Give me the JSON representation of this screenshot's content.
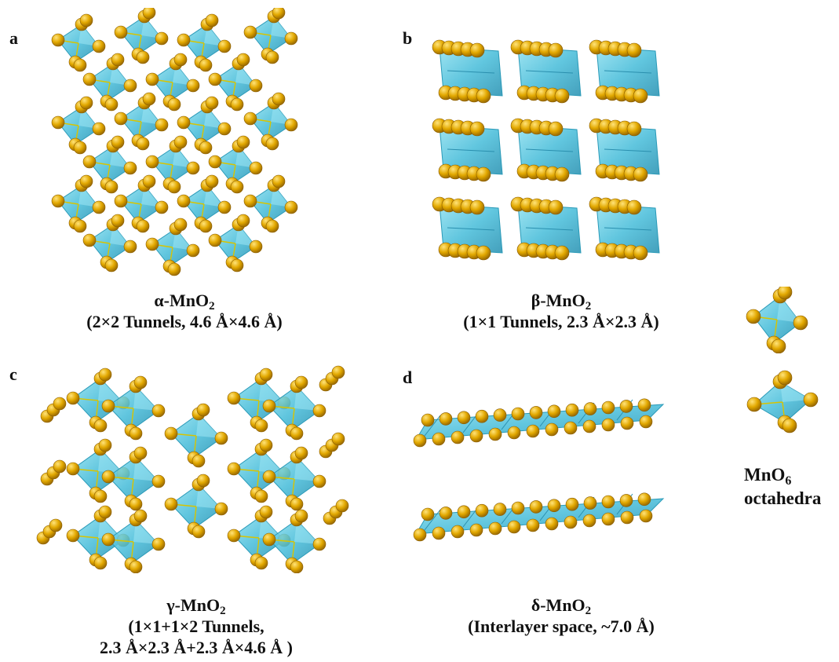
{
  "panels": {
    "a": {
      "letter": "a",
      "name_prefix": "α-MnO",
      "sub": "2",
      "line2": "(2×2 Tunnels, 4.6 Å×4.6 Å)"
    },
    "b": {
      "letter": "b",
      "name_prefix": "β-MnO",
      "sub": "2",
      "line2": "(1×1 Tunnels, 2.3 Å×2.3 Å)"
    },
    "c": {
      "letter": "c",
      "name_prefix": "γ-MnO",
      "sub": "2",
      "line2": "(1×1+1×2 Tunnels,",
      "line3": "2.3 Å×2.3 Å+2.3 Å×4.6 Å )"
    },
    "d": {
      "letter": "d",
      "name_prefix": "δ-MnO",
      "sub": "2",
      "line2": "(Interlayer space, ~7.0 Å)"
    }
  },
  "legend": {
    "formula_prefix": "MnO",
    "formula_sub": "6",
    "word": "octahedra"
  },
  "colors": {
    "octahedron_fill": "#4fc3dc",
    "octahedron_edge": "#2a9ab8",
    "oxygen": "#d9a400",
    "oxygen_highlight": "#ffe06a",
    "bond": "#d8c400"
  }
}
